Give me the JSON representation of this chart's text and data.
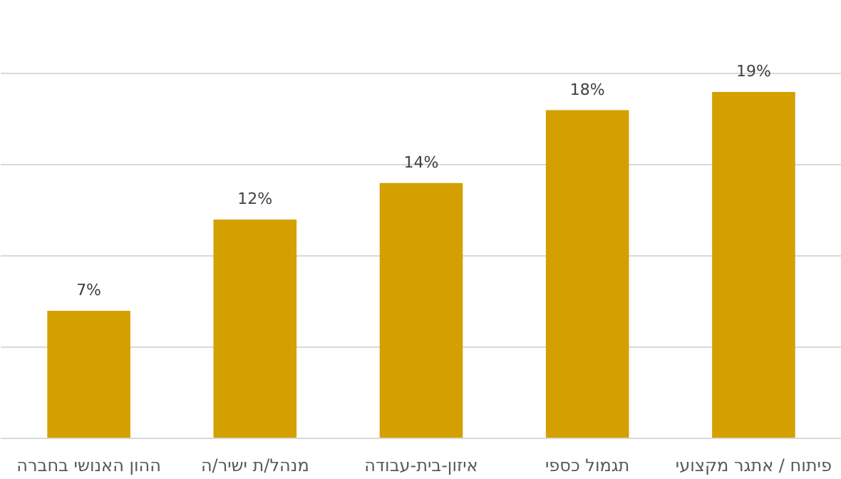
{
  "chart_data": {
    "type": "bar",
    "categories": [
      "ההון האנושי בחברה",
      "מנהל/ת ישיר/ה",
      "איזון-בית-עבודה",
      "תגמול כספי",
      "פיתוח / אתגר מקצועי"
    ],
    "values": [
      7,
      12,
      14,
      18,
      19
    ],
    "value_labels": [
      "7%",
      "12%",
      "14%",
      "18%",
      "19%"
    ],
    "color": "#d4a000",
    "yticks": [
      {
        "value": 0,
        "label": null
      },
      {
        "value": 5,
        "label": null
      },
      {
        "value": 10,
        "label": null
      },
      {
        "value": 15,
        "label": null
      },
      {
        "value": 20,
        "label": null
      }
    ],
    "tick_labels": "x",
    "grid": "y"
  }
}
